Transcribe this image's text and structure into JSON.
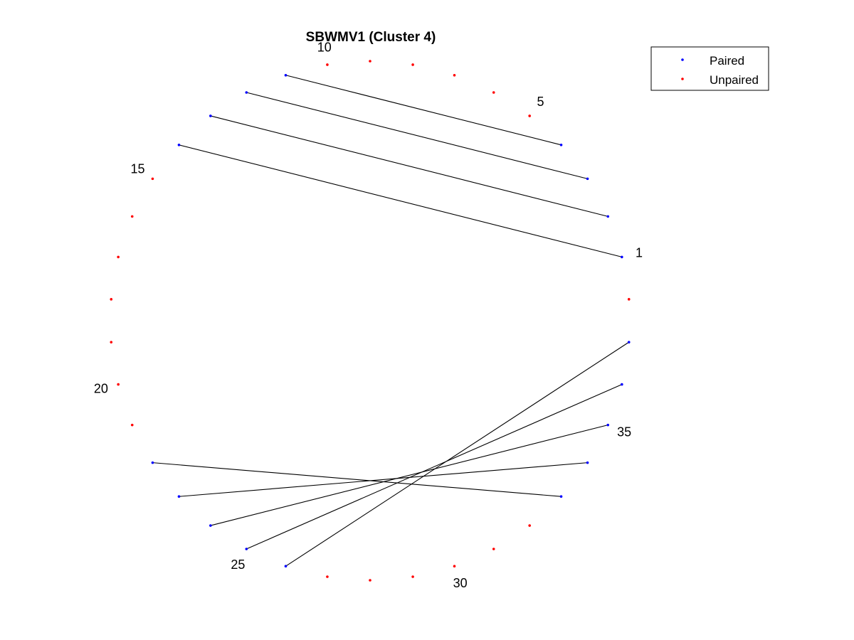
{
  "title": "SBWMV1 (Cluster 4)",
  "colors": {
    "paired": "#0000ff",
    "unpaired": "#ff0000",
    "line": "#000000"
  },
  "legend": {
    "placement": "top-right",
    "entries": [
      {
        "label": "Paired",
        "color": "#0000ff"
      },
      {
        "label": "Unpaired",
        "color": "#ff0000"
      }
    ]
  },
  "chart_data": {
    "type": "arc-diagram",
    "layout": "circular",
    "n_positions": 38,
    "start_position": 1,
    "direction": "counterclockwise",
    "position_labels": [
      {
        "position": 1,
        "text": "1"
      },
      {
        "position": 5,
        "text": "5"
      },
      {
        "position": 10,
        "text": "10"
      },
      {
        "position": 15,
        "text": "15"
      },
      {
        "position": 20,
        "text": "20"
      },
      {
        "position": 25,
        "text": "25"
      },
      {
        "position": 30,
        "text": "30"
      },
      {
        "position": 35,
        "text": "35"
      }
    ],
    "pairs": [
      [
        1,
        14
      ],
      [
        2,
        13
      ],
      [
        3,
        12
      ],
      [
        4,
        11
      ],
      [
        22,
        33
      ],
      [
        23,
        34
      ],
      [
        24,
        35
      ],
      [
        25,
        36
      ],
      [
        26,
        37
      ]
    ]
  }
}
